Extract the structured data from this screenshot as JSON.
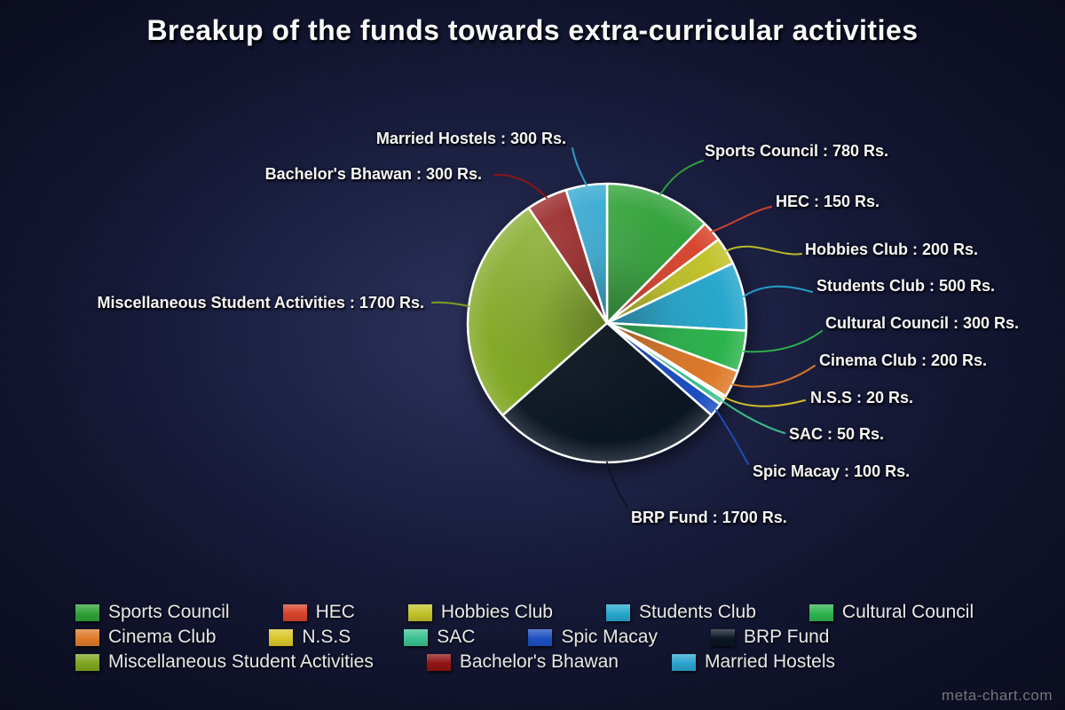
{
  "page": {
    "watermark": "meta-chart.com"
  },
  "chart_data": {
    "type": "pie",
    "title": "Breakup of the funds towards extra-curricular activities",
    "unit_suffix": "Rs.",
    "label_format": "{category} : {value} Rs.",
    "start_angle_deg": 0,
    "direction": "clockwise",
    "legend_position": "bottom",
    "categories": [
      "Sports Council",
      "HEC",
      "Hobbies Club",
      "Students Club",
      "Cultural Council",
      "Cinema Club",
      "N.S.S",
      "SAC",
      "Spic Macay",
      "BRP Fund",
      "Miscellaneous Student Activities",
      "Bachelor's Bhawan",
      "Married Hostels"
    ],
    "values": [
      780,
      150,
      200,
      500,
      300,
      200,
      20,
      50,
      100,
      1700,
      1700,
      300,
      300
    ],
    "colors": [
      "#2fa137",
      "#d8432b",
      "#c1c228",
      "#27a7cd",
      "#2db44e",
      "#de7a2b",
      "#d9c72b",
      "#3cc191",
      "#1e4fc2",
      "#0b1623",
      "#7ea61f",
      "#901414",
      "#2aa4cf"
    ]
  }
}
